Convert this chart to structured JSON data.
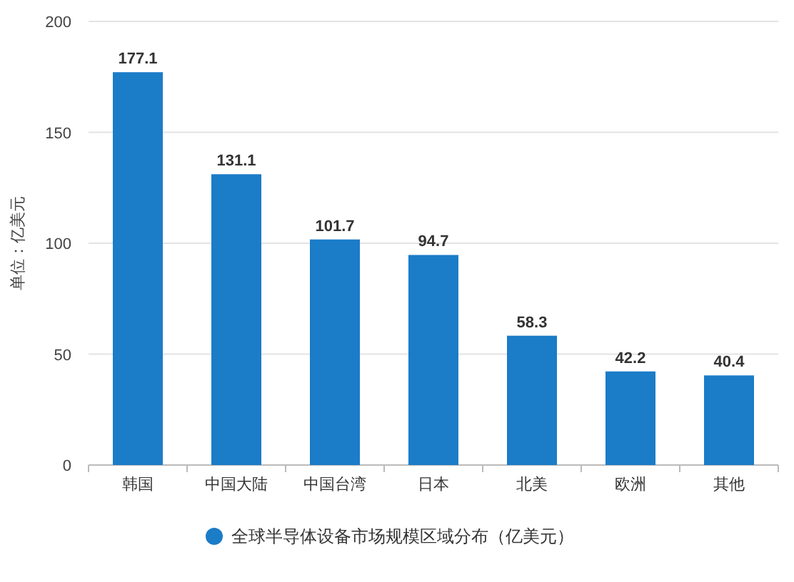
{
  "chart_data": {
    "type": "bar",
    "ylabel": "单位：亿美元",
    "categories": [
      "韩国",
      "中国大陆",
      "中国台湾",
      "日本",
      "北美",
      "欧洲",
      "其他"
    ],
    "series": [
      {
        "name": "全球半导体设备市场规模区域分布（亿美元）",
        "color": "#1b7cc8",
        "values": [
          177.1,
          131.1,
          101.7,
          94.7,
          58.3,
          42.2,
          40.4
        ]
      }
    ],
    "ylim": [
      0,
      200
    ],
    "yticks": [
      0,
      50,
      100,
      150,
      200
    ],
    "grid": "y",
    "data_labels": true,
    "legend": "bottom"
  }
}
